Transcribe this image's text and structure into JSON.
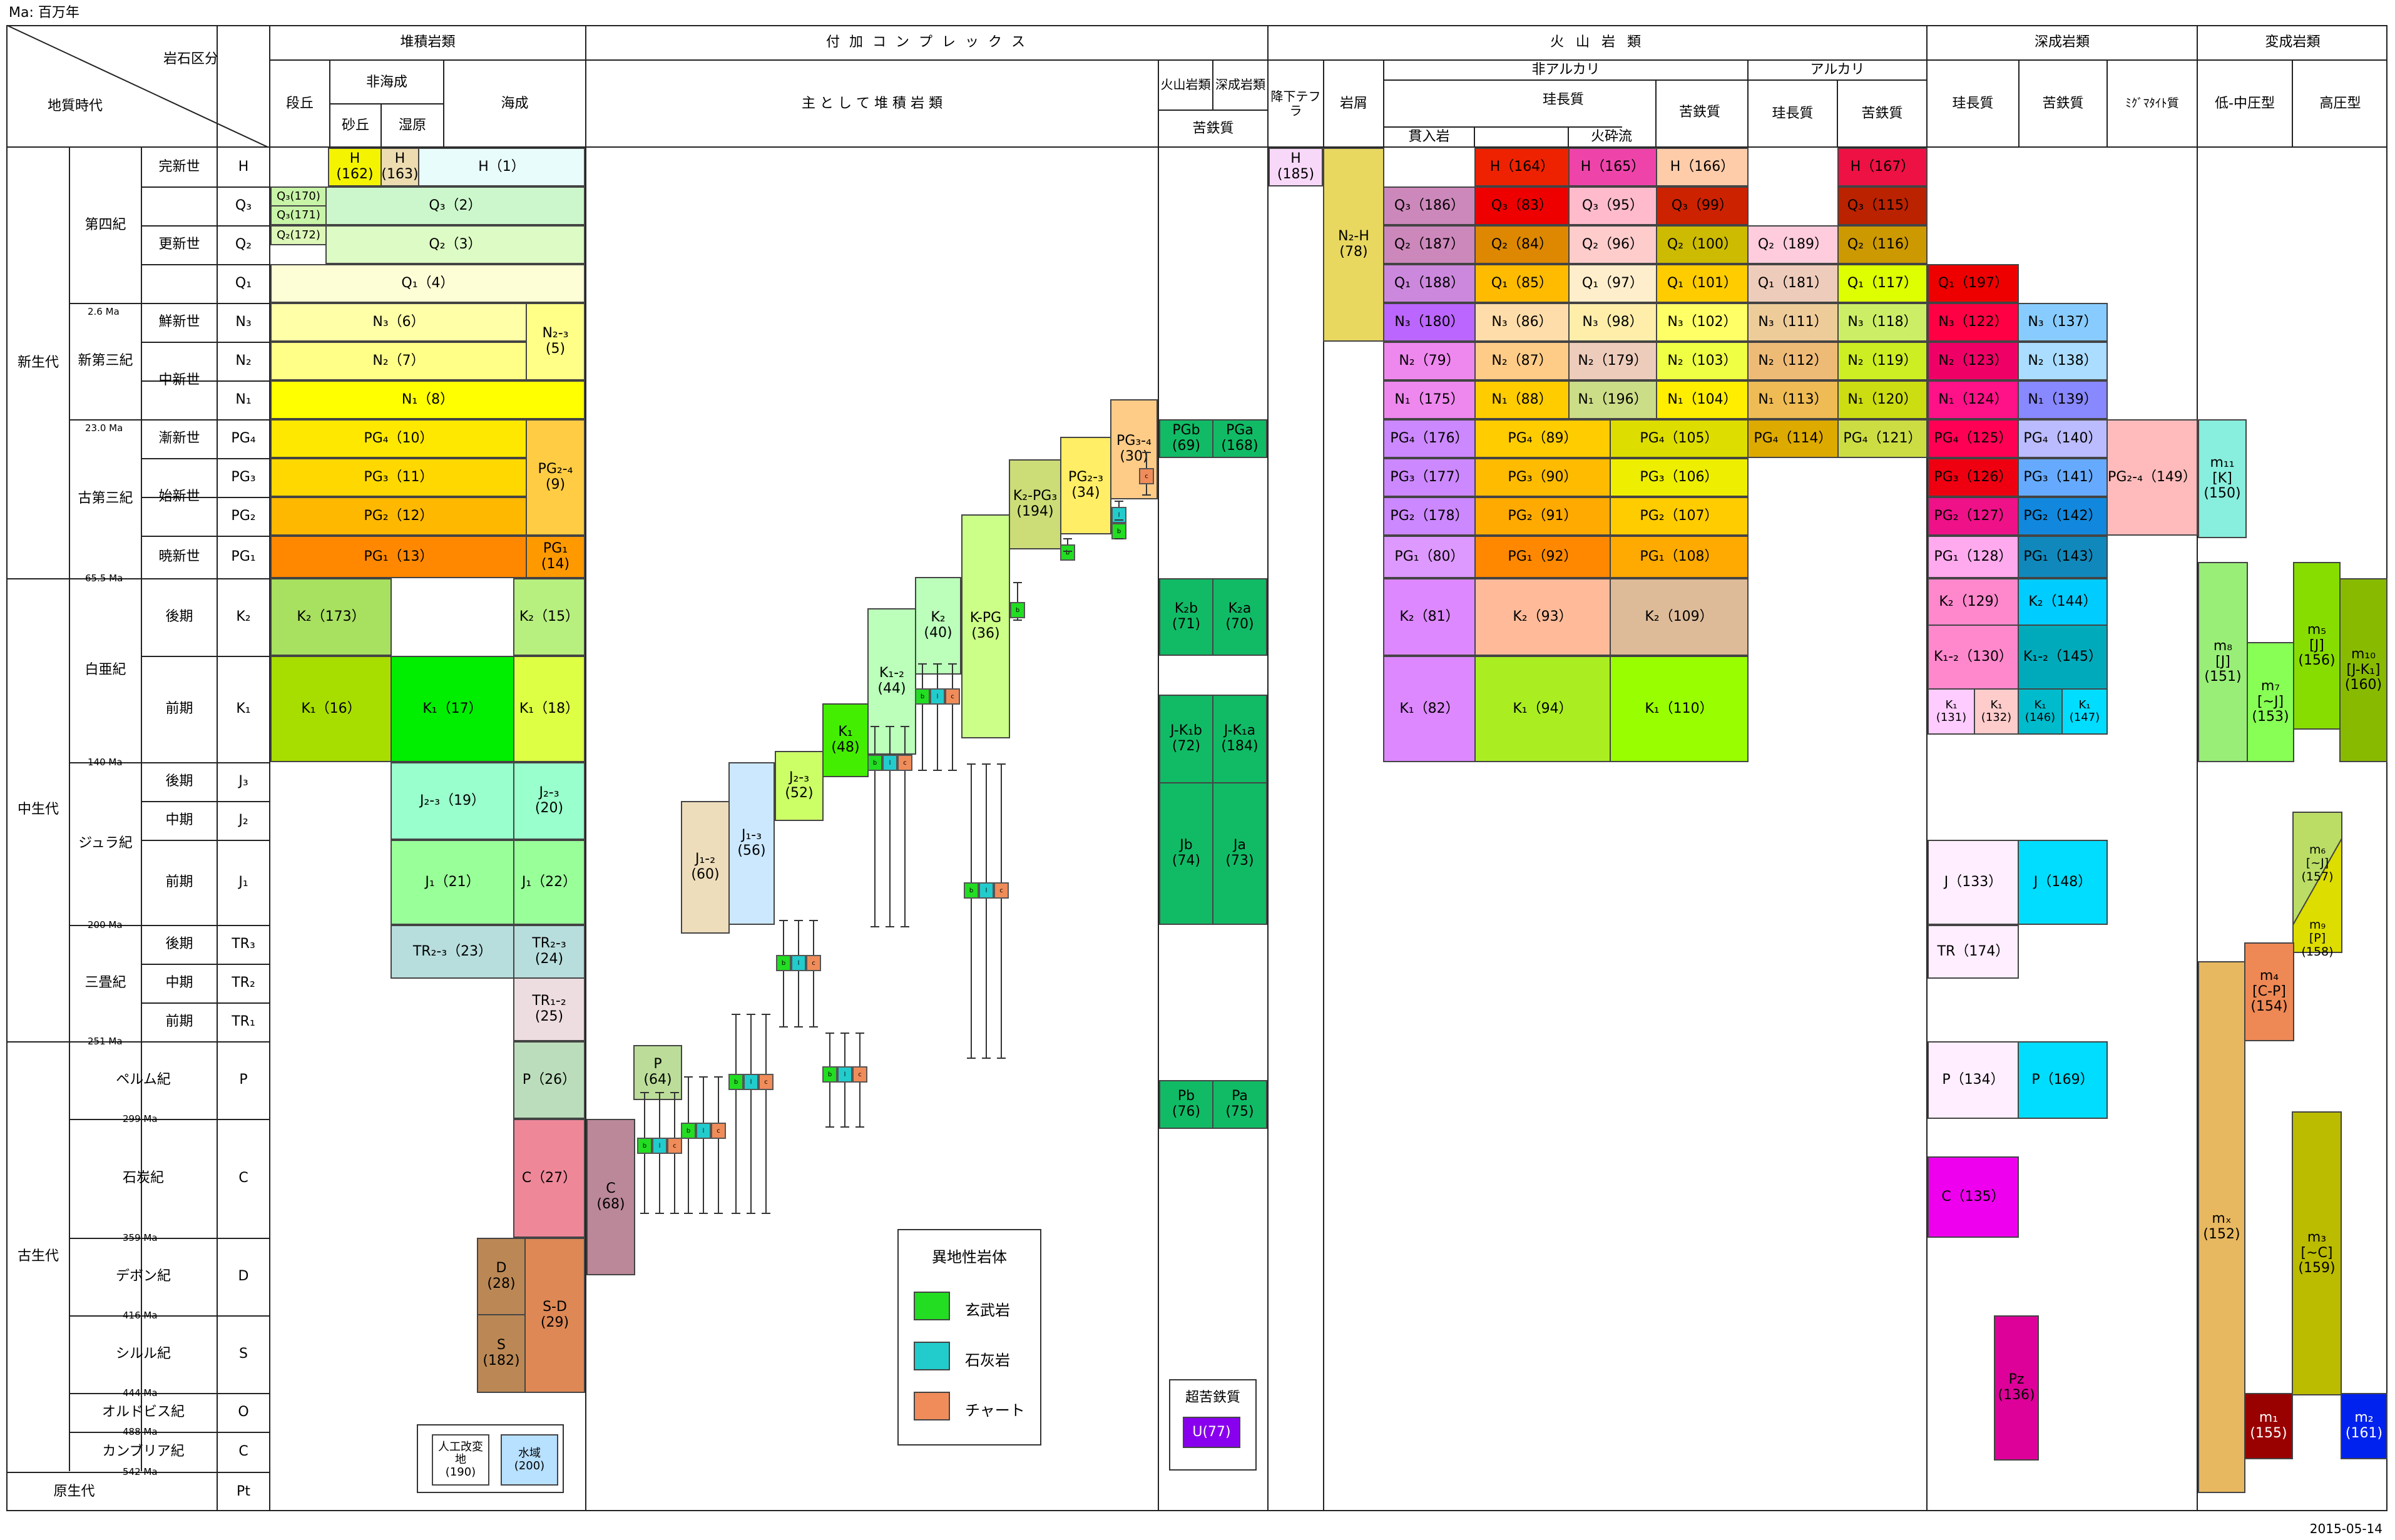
{
  "unit_note": "Ma: 百万年",
  "date": "2015-05-14",
  "headers": {
    "rock_class": "岩石区分",
    "geologic_time": "地質時代",
    "sedimentary": "堆積岩類",
    "terrace": "段丘",
    "nonmarine": "非海成",
    "sand_gravel": "砂丘",
    "marsh": "湿原",
    "marine": "海成",
    "accretionary": "付 加 コ ン プ レ ッ ク ス",
    "mainly_sedimentary": "主 と し て 堆 積 岩 類",
    "volcanic_kind": "火山岩類",
    "plutonic_kind": "深成岩類",
    "mafic_acc": "苦鉄質",
    "volcanic": "火 山 岩 類",
    "tephra": "降下テフラ",
    "debris": "岩屑",
    "nonalkali": "非アルカリ",
    "alkali": "アルカリ",
    "intrusive": "貫入岩",
    "pyroclastic": "火砕流",
    "felsic": "珪長質",
    "mafic": "苦鉄質",
    "plutonic": "深成岩類",
    "migmatite": "ﾐｸﾞﾏﾀｲﾄ質",
    "metamorphic": "変成岩類",
    "low_mid_p": "低-中圧型",
    "high_p": "高圧型"
  },
  "eras": {
    "cenozoic": "新生代",
    "mesozoic": "中生代",
    "paleozoic": "古生代",
    "proterozoic": "原生代"
  },
  "periods": {
    "quaternary": "第四紀",
    "neogene": "新第三紀",
    "paleogene": "古第三紀",
    "cretaceous": "白亜紀",
    "jurassic": "ジュラ紀",
    "triassic": "三畳紀",
    "permian": "ペルム紀",
    "carboniferous": "石炭紀",
    "devonian": "デボン紀",
    "silurian": "シルル紀",
    "ordovician": "オルドビス紀",
    "cambrian": "カンブリア紀"
  },
  "epochs": {
    "holocene": "完新世",
    "pleistocene": "更新世",
    "pliocene": "鮮新世",
    "miocene": "中新世",
    "oligocene": "漸新世",
    "eocene": "始新世",
    "paleocene": "暁新世",
    "late": "後期",
    "middle": "中期",
    "early": "前期"
  },
  "codes": {
    "H": "H",
    "Q3": "Q₃",
    "Q2": "Q₂",
    "Q1": "Q₁",
    "N3": "N₃",
    "N2": "N₂",
    "N1": "N₁",
    "PG4": "PG₄",
    "PG3": "PG₃",
    "PG2": "PG₂",
    "PG1": "PG₁",
    "K2": "K₂",
    "K1": "K₁",
    "J3": "J₃",
    "J2": "J₂",
    "J1": "J₁",
    "TR3": "TR₃",
    "TR2": "TR₂",
    "TR1": "TR₁",
    "P": "P",
    "C": "C",
    "D": "D",
    "S": "S",
    "O": "O",
    "Cm": "C",
    "Pt": "Pt"
  },
  "ma_labels": [
    "2.6 Ma",
    "23.0 Ma",
    "65.5 Ma",
    "140 Ma",
    "200 Ma",
    "251 Ma",
    "299 Ma",
    "359 Ma",
    "416 Ma",
    "444 Ma",
    "488 Ma",
    "542 Ma"
  ],
  "cells": {
    "h162": "H\n(162)",
    "h163": "H\n(163)",
    "h1": "H（1）",
    "q3_170": "Q₃(170)",
    "q3_171": "Q₃(171)",
    "q2_172": "Q₂(172)",
    "q3_2": "Q₃（2）",
    "q2_3": "Q₂（3）",
    "q1_4": "Q₁（4）",
    "n3_6": "N₃（6）",
    "n2_7": "N₂（7）",
    "n1_8": "N₁（8）",
    "n23_5": "N₂-₃\n(5)",
    "pg4_10": "PG₄（10）",
    "pg3_11": "PG₃（11）",
    "pg2_12": "PG₂（12）",
    "pg1_13": "PG₁（13）",
    "pg24_9": "PG₂-₄\n(9)",
    "pg1_14": "PG₁\n(14)",
    "k2_173": "K₂（173）",
    "k2_15": "K₂（15）",
    "k1_16": "K₁（16）",
    "k1_17": "K₁（17）",
    "k1_18": "K₁（18）",
    "j23_19": "J₂-₃（19）",
    "j23_20": "J₂-₃\n(20)",
    "j1_21": "J₁（21）",
    "j1_22": "J₁（22）",
    "tr23_23": "TR₂-₃（23）",
    "tr23_24": "TR₂-₃\n(24)",
    "tr12_25": "TR₁-₂\n(25)",
    "p_26": "P（26）",
    "c_27": "C（27）",
    "d_28": "D\n(28)",
    "s_182": "S\n(182)",
    "sd_29": "S-D\n(29)",
    "c_68": "C\n(68)",
    "p_64": "P\n(64)",
    "j12_60": "J₁-₂\n(60)",
    "j13_56": "J₁-₃\n(56)",
    "j23_52": "J₂-₃\n(52)",
    "k1_48": "K₁\n(48)",
    "k12_44": "K₁-₂\n(44)",
    "k2_40": "K₂\n(40)",
    "kpg_36": "K-PG\n(36)",
    "k2pg3_194": "K₂-PG₃\n(194)",
    "pg23_34": "PG₂-₃\n(34)",
    "pg34_30": "PG₃-₄\n(30)",
    "pgb_69": "PGb\n(69)",
    "pga_168": "PGa\n(168)",
    "k2b_71": "K₂b\n(71)",
    "k2a_70": "K₂a\n(70)",
    "jk1b_72": "J-K₁b\n(72)",
    "jk1a_184": "J-K₁a\n(184)",
    "jb_74": "Jb\n(74)",
    "ja_73": "Ja\n(73)",
    "pb_76": "Pb\n(76)",
    "pa_75": "Pa\n(75)",
    "ultramafic": "超苦鉄質",
    "u_77": "U(77)",
    "artificial": "人工改変地\n(190)",
    "water": "水域\n(200)",
    "h_185": "H\n(185)",
    "n2h_78": "N₂-H\n(78)",
    "q3_186": "Q₃（186）",
    "q2_187": "Q₂（187）",
    "q1_188": "Q₁（188）",
    "n3_180": "N₃（180）",
    "n2_79": "N₂（79）",
    "n1_175": "N₁（175）",
    "pg4_176": "PG₄（176）",
    "pg3_177": "PG₃（177）",
    "pg2_178": "PG₂（178）",
    "pg1_80": "PG₁（80）",
    "k2_81": "K₂（81）",
    "k1_82": "K₁（82）",
    "h_164": "H（164）",
    "q3_83": "Q₃（83）",
    "q2_84": "Q₂（84）",
    "q1_85": "Q₁（85）",
    "n3_86": "N₃（86）",
    "n2_87": "N₂（87）",
    "n1_88": "N₁（88）",
    "pg4_89": "PG₄（89）",
    "pg3_90": "PG₃（90）",
    "pg2_91": "PG₂（91）",
    "pg1_92": "PG₁（92）",
    "k2_93": "K₂（93）",
    "k1_94": "K₁（94）",
    "h_165": "H（165）",
    "q3_95": "Q₃（95）",
    "q2_96": "Q₂（96）",
    "q1_97": "Q₁（97）",
    "n3_98": "N₃（98）",
    "n2_179": "N₂（179）",
    "n1_196": "N₁（196）",
    "h_166": "H（166）",
    "q3_99": "Q₃（99）",
    "q2_100": "Q₂（100）",
    "q1_101": "Q₁（101）",
    "n3_102": "N₃（102）",
    "n2_103": "N₂（103）",
    "n1_104": "N₁（104）",
    "pg4_105": "PG₄（105）",
    "pg3_106": "PG₃（106）",
    "pg2_107": "PG₂（107）",
    "pg1_108": "PG₁（108）",
    "k2_109": "K₂（109）",
    "k1_110": "K₁（110）",
    "q2_189": "Q₂（189）",
    "q1_181": "Q₁（181）",
    "n3_111": "N₃（111）",
    "n2_112": "N₂（112）",
    "n1_113": "N₁（113）",
    "pg4_114": "PG₄（114）",
    "h_167": "H（167）",
    "q3_115": "Q₃（115）",
    "q2_116": "Q₂（116）",
    "q1_117": "Q₁（117）",
    "n3_118": "N₃（118）",
    "n2_119": "N₂（119）",
    "n1_120": "N₁（120）",
    "pg4_121": "PG₄（121）",
    "q1_197": "Q₁（197）",
    "n3_122": "N₃（122）",
    "n2_123": "N₂（123）",
    "n1_124": "N₁（124）",
    "pg4_125": "PG₄（125）",
    "pg3_126": "PG₃（126）",
    "pg2_127": "PG₂（127）",
    "pg1_128": "PG₁（128）",
    "k2_129": "K₂（129）",
    "k12_130": "K₁-₂（130）",
    "k1_131": "K₁\n(131)",
    "k1_132": "K₁\n(132)",
    "j_133": "J（133）",
    "tr_174": "TR（174）",
    "p_134": "P（134）",
    "c_135": "C（135）",
    "pz_136": "Pz\n(136)",
    "n3_137": "N₃（137）",
    "n2_138": "N₂（138）",
    "n1_139": "N₁（139）",
    "pg4_140": "PG₄（140）",
    "pg3_141": "PG₃（141）",
    "pg2_142": "PG₂（142）",
    "pg1_143": "PG₁（143）",
    "k2_144": "K₂（144）",
    "k12_145": "K₁-₂（145）",
    "k1_146": "K₁\n(146)",
    "k1_147": "K₁\n(147)",
    "j_148": "J（148）",
    "p_169": "P（169）",
    "pg24_149": "PG₂-₄（149）",
    "m11": "m₁₁\n[K]\n(150)",
    "m8": "m₈\n[J]\n(151)",
    "m7": "m₇\n[~J]\n(153)",
    "m5": "m₅\n[J]\n(156)",
    "m10": "m₁₀\n[J-K₁]\n(160)",
    "m6": "m₆\n[~J]\n(157)",
    "m9": "m₉\n[P]\n(158)",
    "m4": "m₄\n[C-P]\n(154)",
    "mx": "mₓ\n(152)",
    "m3": "m₃\n[~C]\n(159)",
    "m1": "m₁\n(155)",
    "m2": "m₂\n(161)"
  },
  "legend": {
    "title": "異地性岩体",
    "basalt": "玄武岩",
    "limestone": "石灰岩",
    "chert": "チャート"
  },
  "seg_labels": {
    "b": "b",
    "l": "l",
    "c": "c"
  },
  "colors": {
    "basalt": "#22dd22",
    "limestone": "#22cccc",
    "chert": "#f08c5a",
    "accretion": "#11bb66",
    "ultramafic": "#8800ee"
  }
}
